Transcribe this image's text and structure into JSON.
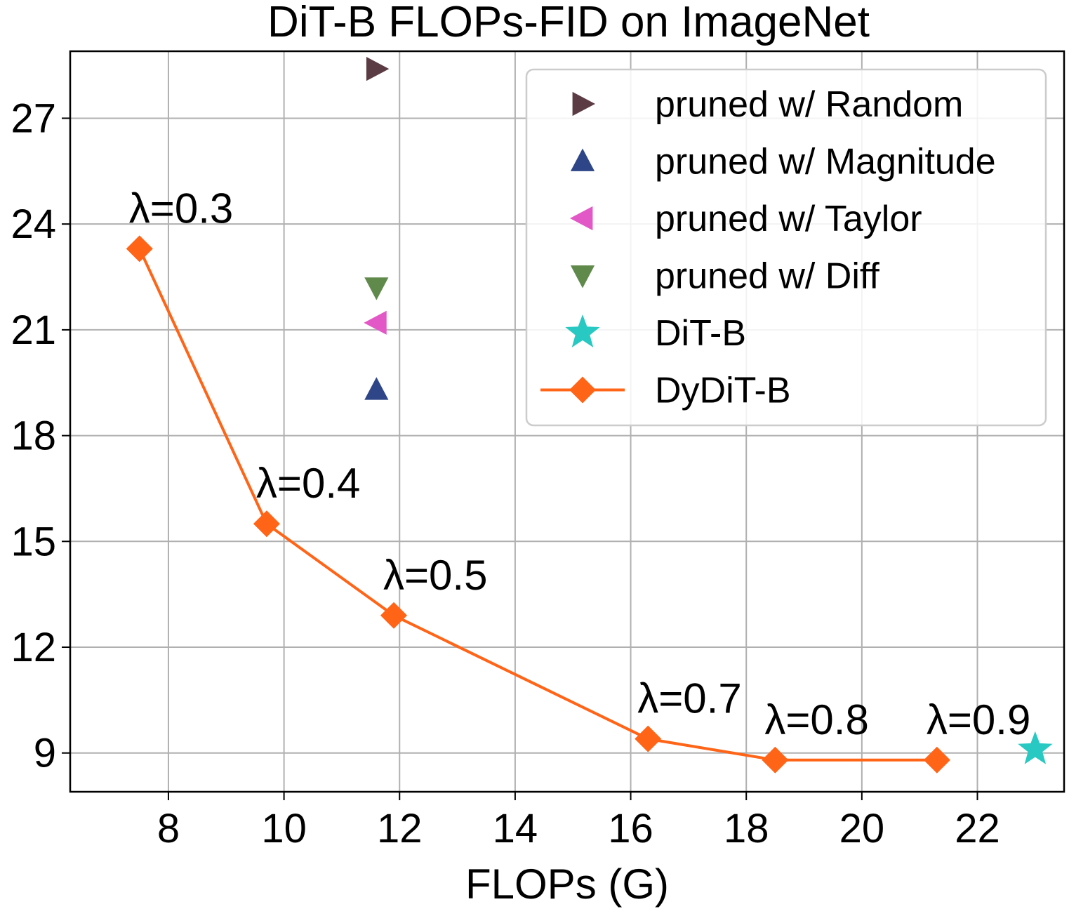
{
  "chart_data": {
    "type": "line",
    "title": "DiT-B FLOPs-FID on ImageNet",
    "xlabel": "FLOPs (G)",
    "ylabel": "",
    "xlim": [
      6.3,
      23.5
    ],
    "ylim": [
      7.9,
      28.9
    ],
    "xticks": [
      8,
      10,
      12,
      14,
      16,
      18,
      20,
      22
    ],
    "yticks": [
      9,
      12,
      15,
      18,
      21,
      24,
      27
    ],
    "grid": true,
    "legend_position": "top-right",
    "series": [
      {
        "name": "pruned w/ Random",
        "marker": "triangle-right",
        "color": "#5b3b44",
        "x": [
          11.6
        ],
        "y": [
          28.4
        ]
      },
      {
        "name": "pruned w/ Magnitude",
        "marker": "triangle-up",
        "color": "#2e4587",
        "x": [
          11.6
        ],
        "y": [
          19.3
        ]
      },
      {
        "name": "pruned w/ Taylor",
        "marker": "triangle-left",
        "color": "#e258c6",
        "x": [
          11.6
        ],
        "y": [
          21.2
        ]
      },
      {
        "name": "pruned w/ Diff",
        "marker": "triangle-down",
        "color": "#608a4c",
        "x": [
          11.6
        ],
        "y": [
          22.2
        ]
      },
      {
        "name": "DiT-B",
        "marker": "star",
        "color": "#28c9c2",
        "x": [
          23.0
        ],
        "y": [
          9.1
        ]
      },
      {
        "name": "DyDiT-B",
        "marker": "diamond",
        "line": true,
        "color": "#ff6417",
        "x": [
          7.5,
          9.7,
          11.9,
          16.3,
          18.5,
          21.3
        ],
        "y": [
          23.3,
          15.5,
          12.9,
          9.4,
          8.8,
          8.8
        ]
      }
    ],
    "annotations": [
      {
        "text": "λ=0.3",
        "x": 7.5,
        "y": 23.3
      },
      {
        "text": "λ=0.4",
        "x": 9.7,
        "y": 15.5
      },
      {
        "text": "λ=0.5",
        "x": 11.9,
        "y": 12.9
      },
      {
        "text": "λ=0.7",
        "x": 16.3,
        "y": 9.4
      },
      {
        "text": "λ=0.8",
        "x": 18.5,
        "y": 8.8
      },
      {
        "text": "λ=0.9",
        "x": 21.3,
        "y": 8.8
      }
    ]
  }
}
